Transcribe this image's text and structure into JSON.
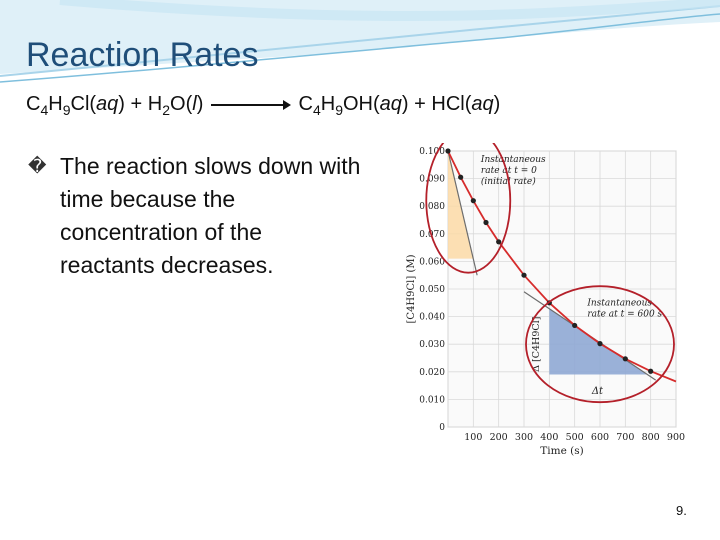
{
  "title": "Reaction Rates",
  "equation": {
    "reactant1": "C",
    "r1_sub1": "4",
    "r1_mid": "H",
    "r1_sub2": "9",
    "r1_end": "Cl(",
    "r1_state": "aq",
    "r1_close": ")",
    "plus1": " + H",
    "r2_sub": "2",
    "r2_end": "O(",
    "r2_state": "l",
    "r2_close": ")",
    "product1": "C",
    "p1_sub1": "4",
    "p1_mid": "H",
    "p1_sub2": "9",
    "p1_end": "OH(",
    "p1_state": "aq",
    "p1_close": ")",
    "plus2": " + HCl(",
    "p2_state": "aq",
    "p2_close": ")"
  },
  "bullet": {
    "mark": "�",
    "text": "The reaction slows down with time because the concentration of the reactants decreases."
  },
  "page_number": "9.",
  "colors": {
    "title": "#1f4e79",
    "curve": "#d62c2c",
    "circle": "#b4202a",
    "initial_fill": "#fbd9a6",
    "later_fill": "#8fa8d4",
    "grid": "#d9d9d9",
    "banner": "#cfe8f5"
  },
  "chart_data": {
    "type": "line",
    "x_ticks": [
      "0",
      "100",
      "200",
      "300",
      "400",
      "500",
      "600",
      "700",
      "800",
      "900"
    ],
    "y_ticks": [
      "0",
      "0.010",
      "0.020",
      "0.030",
      "0.040",
      "0.050",
      "0.060",
      "0.070",
      "0.080",
      "0.090",
      "0.100"
    ],
    "xlabel": "Time (s)",
    "ylabel": "[C4H9Cl] (M)",
    "xlim": [
      0,
      900
    ],
    "ylim": [
      0,
      0.1
    ],
    "series": [
      {
        "x": [
          0,
          50,
          100,
          150,
          200,
          300,
          400,
          500,
          600,
          700,
          800,
          900
        ],
        "y": [
          0.1,
          0.0905,
          0.082,
          0.0741,
          0.0671,
          0.055,
          0.045,
          0.0368,
          0.0302,
          0.0247,
          0.0202,
          0.0165
        ]
      }
    ],
    "points": {
      "x": [
        0,
        50,
        100,
        150,
        200,
        300,
        400,
        500,
        600,
        700,
        800
      ],
      "y": [
        0.1,
        0.0905,
        0.082,
        0.0741,
        0.0671,
        0.055,
        0.045,
        0.0368,
        0.0302,
        0.0247,
        0.0202
      ]
    },
    "annotations": {
      "initial": "Instantaneous rate at t = 0 (initial rate)",
      "initial_lines": [
        "Instantaneous",
        "rate at t = 0",
        "(initial rate)"
      ],
      "later_lines": [
        "Instantaneous",
        "rate at t = 600 s"
      ],
      "delta_c": "Δ [C4H9Cl]",
      "delta_t": "Δt"
    }
  }
}
